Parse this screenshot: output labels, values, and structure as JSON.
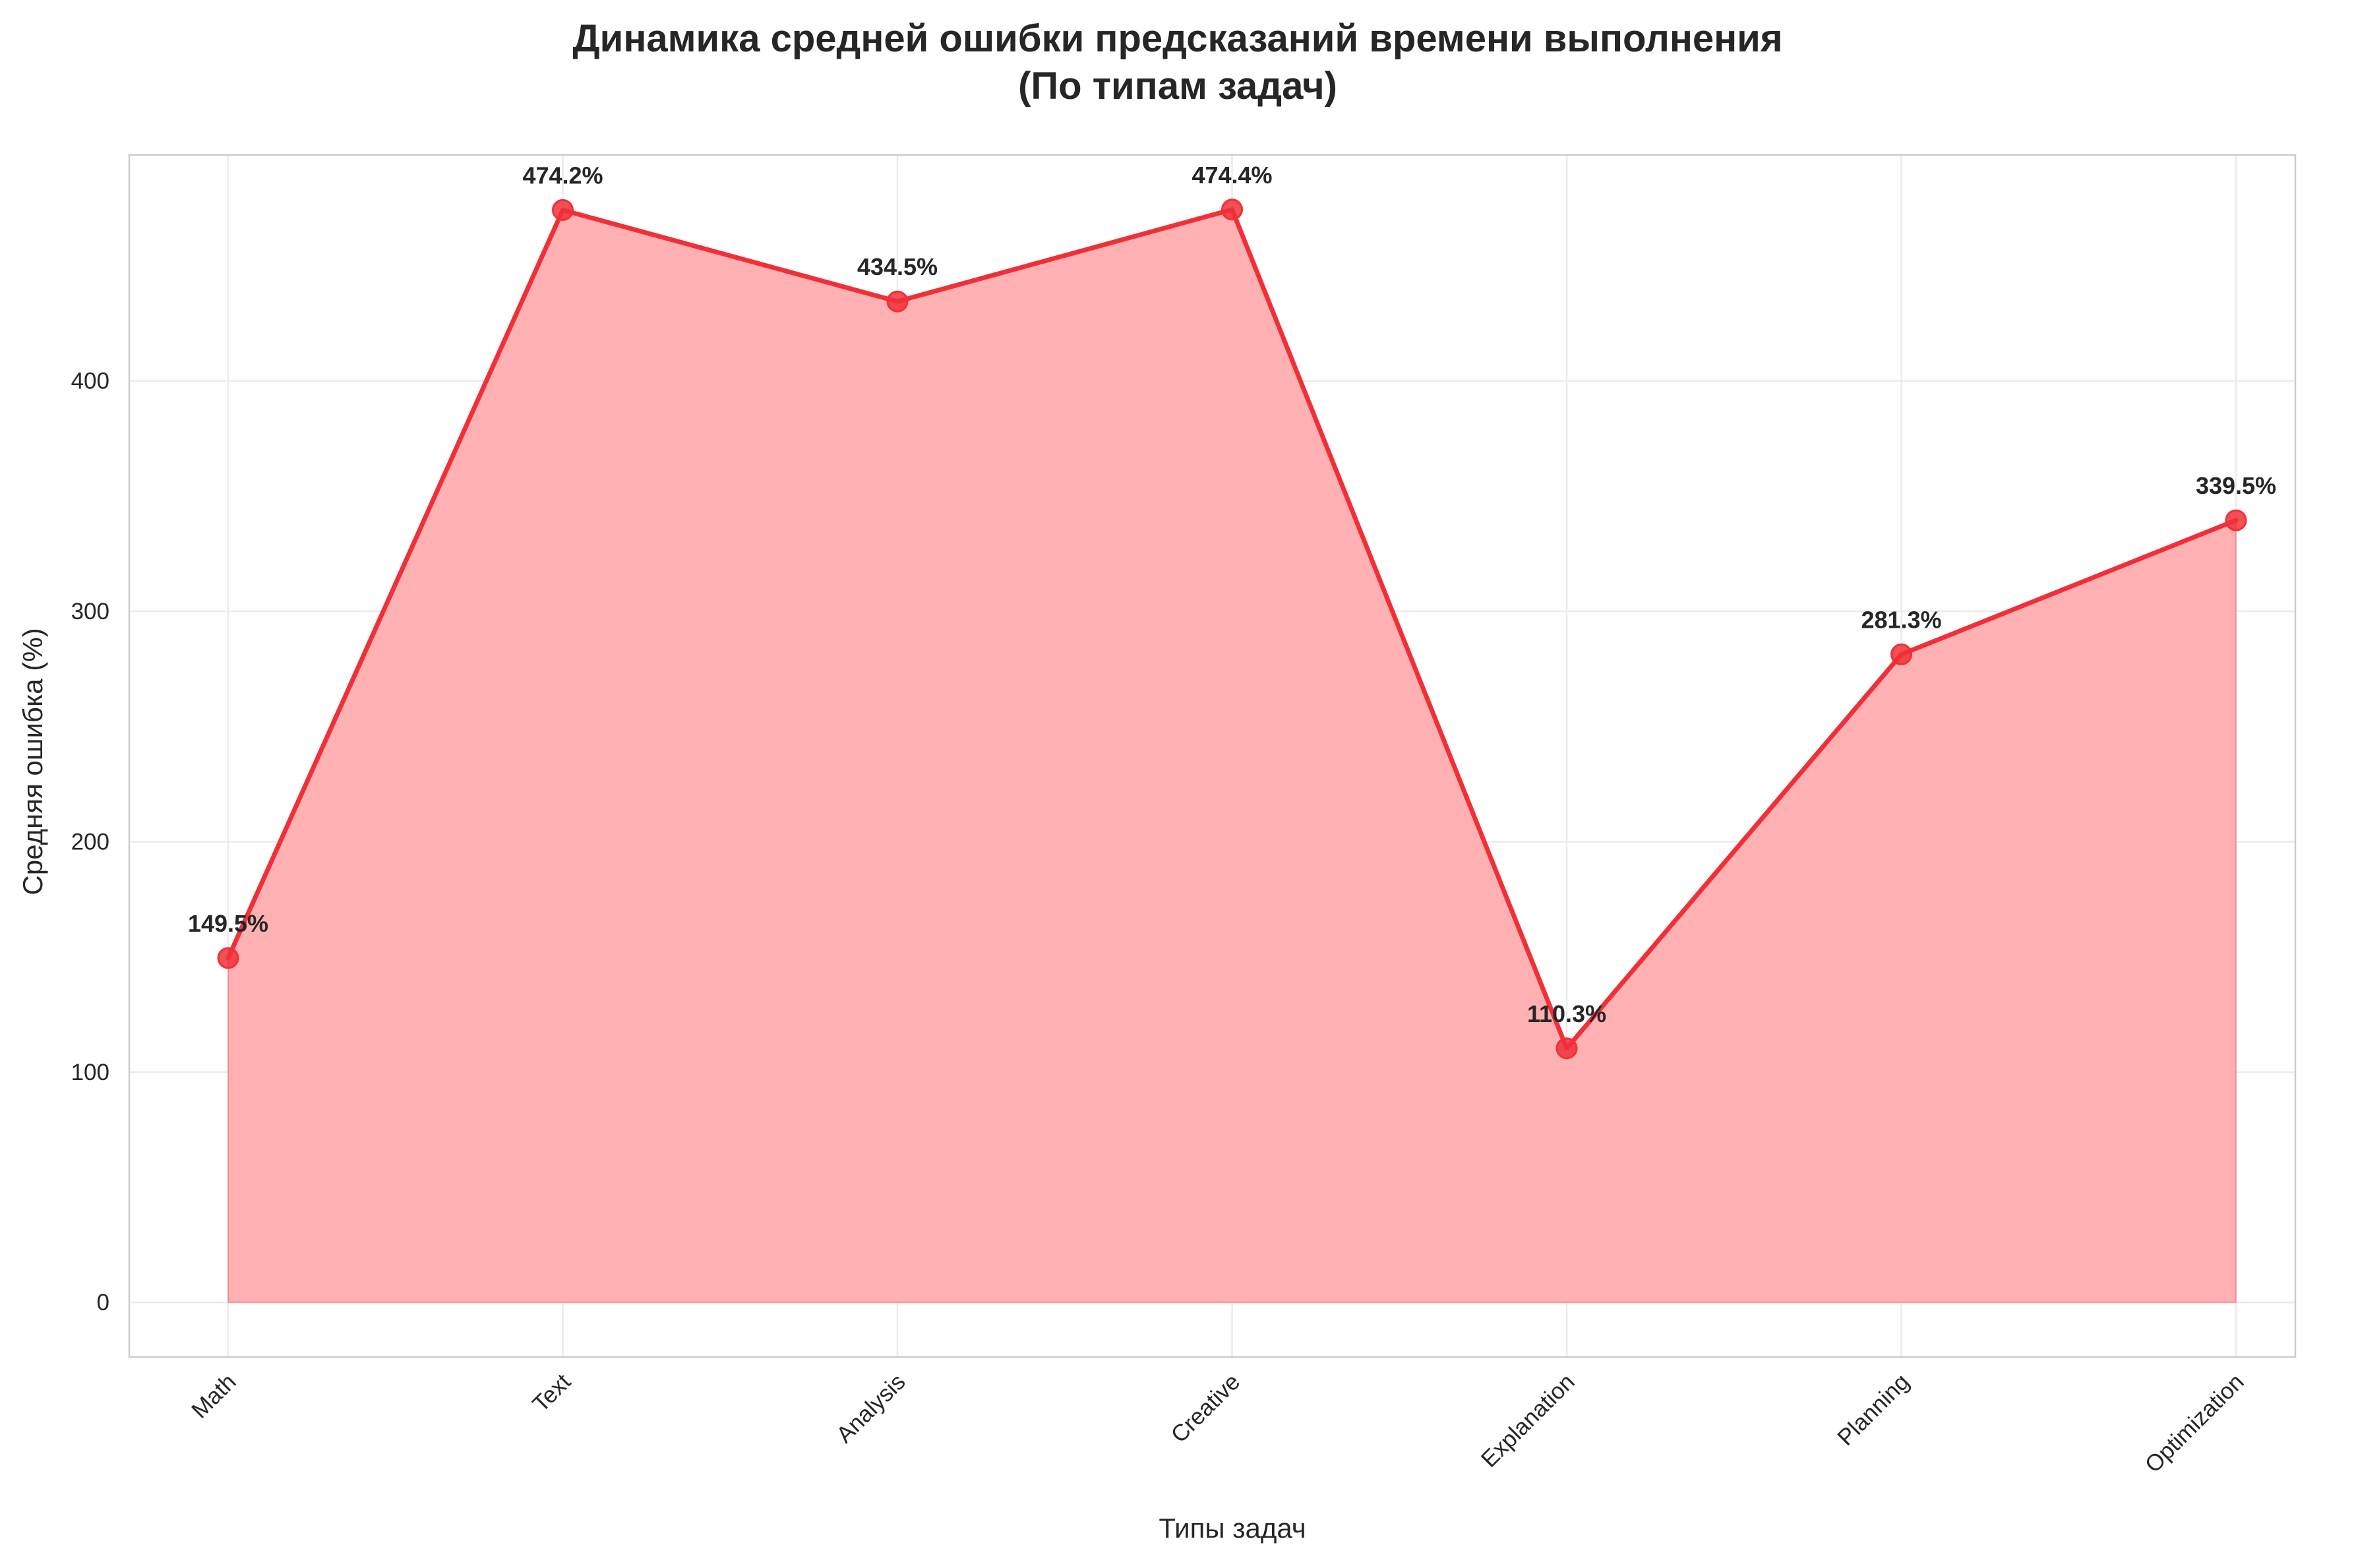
{
  "chart_data": {
    "type": "area",
    "title_lines": [
      "Динамика средней ошибки предсказаний времени выполнения",
      "(По типам задач)"
    ],
    "xlabel": "Типы задач",
    "ylabel": "Средняя ошибка (%)",
    "categories": [
      "Math",
      "Text",
      "Analysis",
      "Creative",
      "Explanation",
      "Planning",
      "Optimization"
    ],
    "values": [
      149.5,
      474.2,
      434.5,
      474.4,
      110.3,
      281.3,
      339.5
    ],
    "data_labels": [
      "149.5%",
      "474.2%",
      "434.5%",
      "474.4%",
      "110.3%",
      "281.3%",
      "339.5%"
    ],
    "yticks": [
      0,
      100,
      200,
      300,
      400
    ],
    "ylim": [
      -23.7,
      498.1
    ],
    "grid": true,
    "legend": "none",
    "colors": {
      "line": "#f03038",
      "fill": "#ffb0b2",
      "marker": "#f03038"
    }
  }
}
